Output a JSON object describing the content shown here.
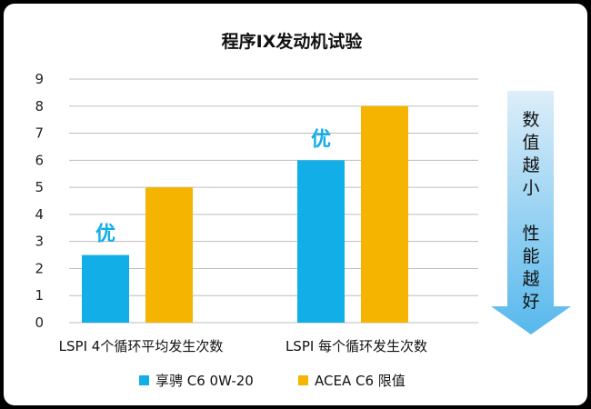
{
  "colors": {
    "series1": "#12aee8",
    "series2": "#f5b400",
    "grid": "#bdbdbd",
    "arrow_top": "#ddeef9",
    "arrow_bottom": "#57b8ec",
    "annotation": "#12aee8"
  },
  "chart_data": {
    "type": "bar",
    "title": "程序IX发动机试验",
    "categories": [
      "LSPI 4个循环平均发生次数",
      "LSPI 每个循环发生次数"
    ],
    "series": [
      {
        "name": "享骋 C6  0W-20",
        "values": [
          2.5,
          6
        ]
      },
      {
        "name": "ACEA  C6 限值",
        "values": [
          5,
          8
        ]
      }
    ],
    "ylim": [
      0,
      9
    ],
    "yticks": [
      "0",
      "1",
      "2",
      "3",
      "4",
      "5",
      "6",
      "7",
      "8",
      "9"
    ],
    "grid": true,
    "legend_position": "bottom",
    "annotations": [
      "优",
      "优"
    ],
    "side_note_lines": [
      "数",
      "值",
      "越",
      "小",
      "",
      "性",
      "能",
      "越",
      "好"
    ]
  }
}
